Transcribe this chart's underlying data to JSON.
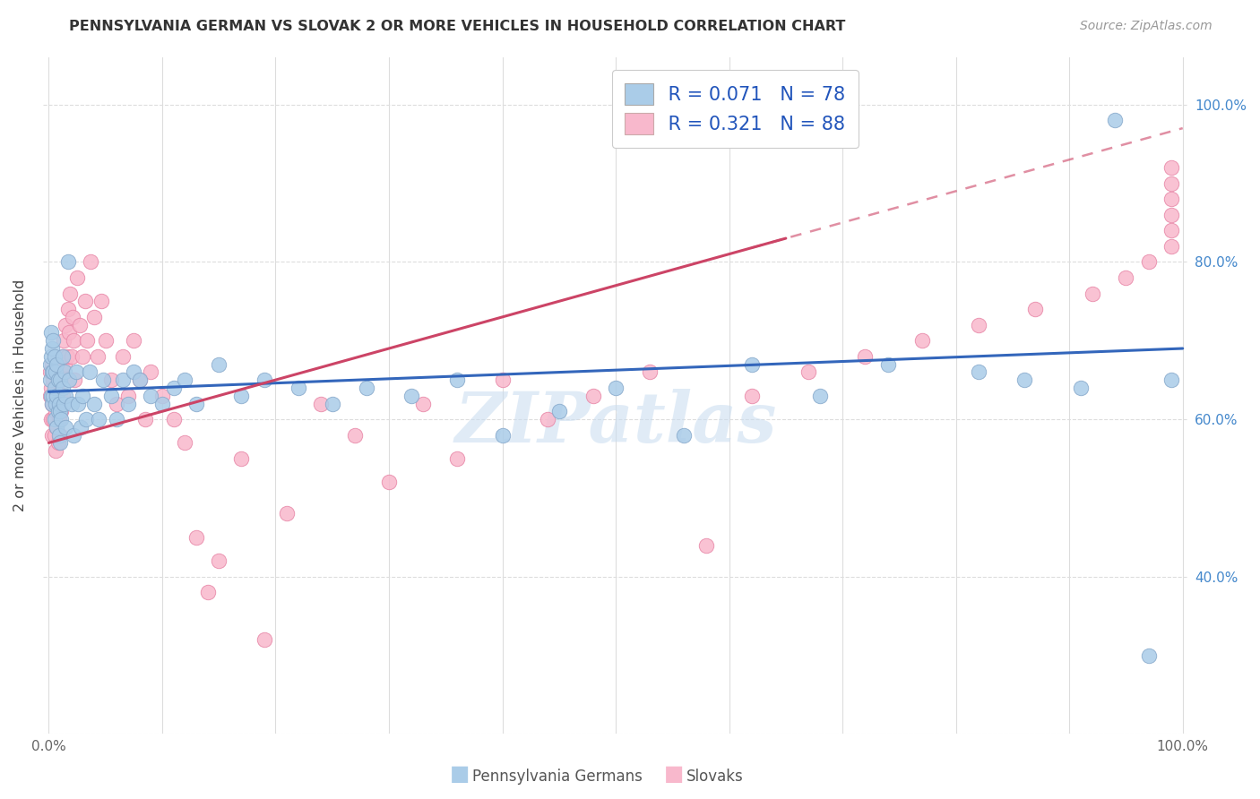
{
  "title": "PENNSYLVANIA GERMAN VS SLOVAK 2 OR MORE VEHICLES IN HOUSEHOLD CORRELATION CHART",
  "source": "Source: ZipAtlas.com",
  "ylabel": "2 or more Vehicles in Household",
  "legend_blue_R": "0.071",
  "legend_blue_N": "78",
  "legend_pink_R": "0.321",
  "legend_pink_N": "88",
  "blue_scatter_face": "#aacce8",
  "blue_scatter_edge": "#88aacc",
  "pink_scatter_face": "#f8b8cc",
  "pink_scatter_edge": "#e888a8",
  "blue_line_color": "#3366bb",
  "pink_line_color": "#cc4466",
  "watermark_color": "#c8dcf0",
  "title_color": "#333333",
  "source_color": "#999999",
  "ylabel_color": "#444444",
  "right_tick_color": "#4488cc",
  "xtick_color": "#666666",
  "grid_color": "#dddddd",
  "legend_text_color": "#2255bb",
  "legend_edge_color": "#cccccc",
  "bottom_legend_blue": "Pennsylvania Germans",
  "bottom_legend_pink": "Slovaks",
  "xlim": [
    -0.005,
    1.005
  ],
  "ylim": [
    0.2,
    1.06
  ],
  "x_ticks": [
    0.0,
    0.1,
    0.2,
    0.3,
    0.4,
    0.5,
    0.6,
    0.7,
    0.8,
    0.9,
    1.0
  ],
  "x_tick_labels": [
    "0.0%",
    "",
    "",
    "",
    "",
    "",
    "",
    "",
    "",
    "",
    "100.0%"
  ],
  "y_ticks_right": [
    0.4,
    0.6,
    0.8,
    1.0
  ],
  "y_tick_labels_right": [
    "40.0%",
    "60.0%",
    "80.0%",
    "100.0%"
  ],
  "blue_x": [
    0.001,
    0.001,
    0.002,
    0.002,
    0.002,
    0.003,
    0.003,
    0.003,
    0.004,
    0.004,
    0.004,
    0.005,
    0.005,
    0.005,
    0.006,
    0.006,
    0.007,
    0.007,
    0.007,
    0.008,
    0.008,
    0.009,
    0.009,
    0.01,
    0.01,
    0.01,
    0.011,
    0.012,
    0.012,
    0.013,
    0.014,
    0.015,
    0.015,
    0.017,
    0.018,
    0.02,
    0.022,
    0.024,
    0.026,
    0.028,
    0.03,
    0.033,
    0.036,
    0.04,
    0.044,
    0.048,
    0.055,
    0.06,
    0.065,
    0.07,
    0.075,
    0.08,
    0.09,
    0.1,
    0.11,
    0.12,
    0.13,
    0.15,
    0.17,
    0.19,
    0.22,
    0.25,
    0.28,
    0.32,
    0.36,
    0.4,
    0.45,
    0.5,
    0.56,
    0.62,
    0.68,
    0.74,
    0.82,
    0.86,
    0.91,
    0.94,
    0.97,
    0.99
  ],
  "blue_y": [
    0.65,
    0.67,
    0.63,
    0.68,
    0.71,
    0.62,
    0.66,
    0.69,
    0.63,
    0.66,
    0.7,
    0.6,
    0.64,
    0.68,
    0.62,
    0.66,
    0.59,
    0.63,
    0.67,
    0.61,
    0.65,
    0.58,
    0.62,
    0.57,
    0.61,
    0.65,
    0.6,
    0.64,
    0.68,
    0.62,
    0.66,
    0.59,
    0.63,
    0.8,
    0.65,
    0.62,
    0.58,
    0.66,
    0.62,
    0.59,
    0.63,
    0.6,
    0.66,
    0.62,
    0.6,
    0.65,
    0.63,
    0.6,
    0.65,
    0.62,
    0.66,
    0.65,
    0.63,
    0.62,
    0.64,
    0.65,
    0.62,
    0.67,
    0.63,
    0.65,
    0.64,
    0.62,
    0.64,
    0.63,
    0.65,
    0.58,
    0.61,
    0.64,
    0.58,
    0.67,
    0.63,
    0.67,
    0.66,
    0.65,
    0.64,
    0.98,
    0.3,
    0.65
  ],
  "pink_x": [
    0.001,
    0.001,
    0.002,
    0.002,
    0.003,
    0.003,
    0.003,
    0.004,
    0.004,
    0.005,
    0.005,
    0.006,
    0.006,
    0.007,
    0.007,
    0.008,
    0.008,
    0.009,
    0.009,
    0.01,
    0.01,
    0.011,
    0.011,
    0.012,
    0.012,
    0.013,
    0.014,
    0.015,
    0.016,
    0.017,
    0.018,
    0.019,
    0.02,
    0.021,
    0.022,
    0.023,
    0.025,
    0.027,
    0.03,
    0.032,
    0.034,
    0.037,
    0.04,
    0.043,
    0.046,
    0.05,
    0.055,
    0.06,
    0.065,
    0.07,
    0.075,
    0.08,
    0.085,
    0.09,
    0.1,
    0.11,
    0.12,
    0.13,
    0.14,
    0.15,
    0.17,
    0.19,
    0.21,
    0.24,
    0.27,
    0.3,
    0.33,
    0.36,
    0.4,
    0.44,
    0.48,
    0.53,
    0.58,
    0.62,
    0.67,
    0.72,
    0.77,
    0.82,
    0.87,
    0.92,
    0.95,
    0.97,
    0.99,
    0.99,
    0.99,
    0.99,
    0.99,
    0.99
  ],
  "pink_y": [
    0.63,
    0.66,
    0.6,
    0.64,
    0.58,
    0.62,
    0.67,
    0.6,
    0.65,
    0.58,
    0.63,
    0.56,
    0.61,
    0.59,
    0.64,
    0.57,
    0.62,
    0.6,
    0.65,
    0.58,
    0.63,
    0.66,
    0.61,
    0.68,
    0.63,
    0.7,
    0.67,
    0.72,
    0.68,
    0.74,
    0.71,
    0.76,
    0.68,
    0.73,
    0.7,
    0.65,
    0.78,
    0.72,
    0.68,
    0.75,
    0.7,
    0.8,
    0.73,
    0.68,
    0.75,
    0.7,
    0.65,
    0.62,
    0.68,
    0.63,
    0.7,
    0.65,
    0.6,
    0.66,
    0.63,
    0.6,
    0.57,
    0.45,
    0.38,
    0.42,
    0.55,
    0.32,
    0.48,
    0.62,
    0.58,
    0.52,
    0.62,
    0.55,
    0.65,
    0.6,
    0.63,
    0.66,
    0.44,
    0.63,
    0.66,
    0.68,
    0.7,
    0.72,
    0.74,
    0.76,
    0.78,
    0.8,
    0.82,
    0.84,
    0.86,
    0.88,
    0.9,
    0.92
  ]
}
